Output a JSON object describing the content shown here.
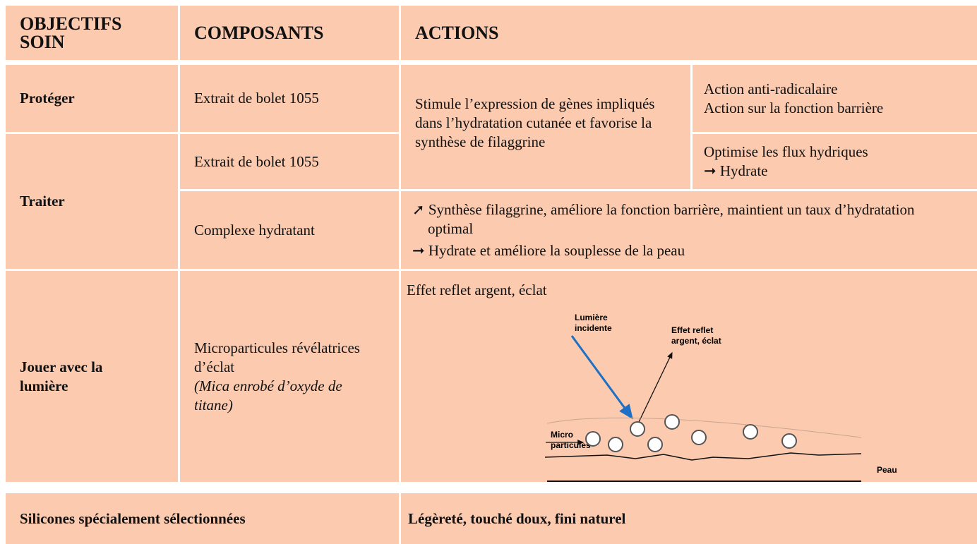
{
  "header": {
    "objectifs": "OBJECTIFS SOIN",
    "composants": "COMPOSANTS",
    "actions": "ACTIONS"
  },
  "rows": [
    {
      "objectif": "Protéger",
      "composant": "Extrait de bolet 1055",
      "action": "Stimule l’expression de gènes impliqués dans l’hydratation cutanée et favorise la synthèse de filaggrine",
      "detail": [
        "Action anti-radicalaire",
        "Action sur la fonction barrière"
      ]
    },
    {
      "objectif": "Traiter",
      "composant": "Extrait de bolet 1055",
      "detail": [
        "Optimise les flux hydriques",
        "➞ Hydrate"
      ]
    },
    {
      "composant": "Complexe hydratant",
      "actions": [
        "➚ Synthèse filaggrine, améliore la fonction barrière, maintient un taux d’hydratation optimal",
        "➞ Hydrate  et améliore la souplesse de la peau"
      ]
    },
    {
      "objectif": "Jouer avec la lumière",
      "composant": "Microparticules révélatrices d’éclat",
      "composant_note": "(Mica enrobé d’oxyde de titane)",
      "action": "Effet reflet argent, éclat",
      "diagram": {
        "incident": "Lumière incidente",
        "reflet": "Effet reflet argent, éclat",
        "particules": "Micro particules",
        "peau": "Peau"
      }
    }
  ],
  "footer": {
    "composant": "Silicones spécialement sélectionnées",
    "action": "Légèreté, touché doux, fini naturel"
  }
}
